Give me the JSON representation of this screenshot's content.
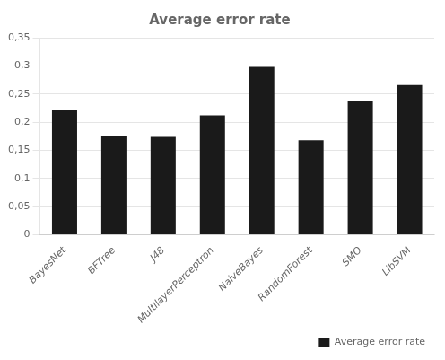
{
  "chart_data": {
    "type": "bar",
    "title": "Average error rate",
    "categories": [
      "BayesNet",
      "BFTree",
      "J48",
      "MultilayerPerceptron",
      "NaiveBayes",
      "RandomForest",
      "SMO",
      "LibSVM"
    ],
    "series": [
      {
        "name": "Average error rate",
        "color": "#1a1a1a",
        "values": [
          0.222,
          0.175,
          0.174,
          0.212,
          0.298,
          0.168,
          0.238,
          0.266
        ]
      }
    ],
    "ylim": [
      0,
      0.35
    ],
    "yticks": [
      0,
      {
        "value": 0.05,
        "label": "0,05"
      },
      {
        "value": 0.1,
        "label": "0,1"
      },
      {
        "value": 0.15,
        "label": "0,15"
      },
      {
        "value": 0.2,
        "label": "0,2"
      },
      {
        "value": 0.25,
        "label": "0,25"
      },
      {
        "value": 0.3,
        "label": "0,3"
      },
      {
        "value": 0.35,
        "label": "0,35"
      }
    ],
    "grid": true,
    "legend": "lower right"
  }
}
